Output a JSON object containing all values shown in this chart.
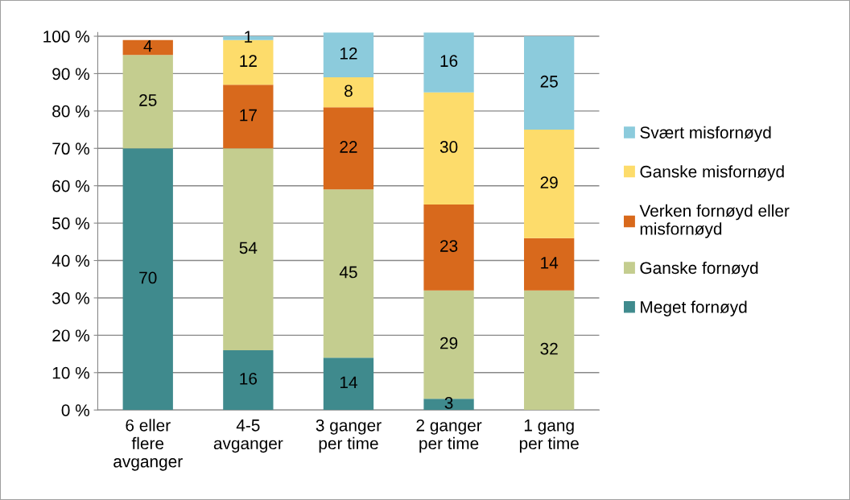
{
  "chart_data": {
    "type": "bar",
    "stacked": true,
    "categories": [
      "6 eller\nflere\navganger",
      "4-5\navganger",
      "3 ganger\nper time",
      "2 ganger\nper time",
      "1 gang\nper time"
    ],
    "series": [
      {
        "name": "Meget fornøyd",
        "color": "#3f8a8d",
        "values": [
          70,
          16,
          14,
          3,
          null
        ],
        "value_labels": [
          "70",
          "16",
          "14",
          "3",
          null
        ]
      },
      {
        "name": "Ganske fornøyd",
        "color": "#c4cd8f",
        "values": [
          25,
          54,
          45,
          29,
          32
        ],
        "value_labels": [
          "25",
          "54",
          "45",
          "29",
          "32"
        ]
      },
      {
        "name": "Verken fornøyd eller\nmisfornøyd",
        "color": "#d8691c",
        "values": [
          4,
          17,
          22,
          23,
          14
        ],
        "value_labels": [
          "4",
          "17",
          "22",
          "23",
          "14"
        ]
      },
      {
        "name": "Ganske misfornøyd",
        "color": "#fddc6b",
        "values": [
          null,
          12,
          8,
          30,
          29
        ],
        "value_labels": [
          null,
          "12",
          "8",
          "30",
          "29"
        ]
      },
      {
        "name": "Svært misfornøyd",
        "color": "#8ccbdc",
        "values": [
          null,
          1,
          12,
          16,
          25
        ],
        "value_labels": [
          null,
          "1",
          "12",
          "16",
          "25"
        ]
      }
    ],
    "ylim": [
      0,
      101
    ],
    "yticks": [
      {
        "value": 0,
        "label": "0 %"
      },
      {
        "value": 10,
        "label": "10 %"
      },
      {
        "value": 20,
        "label": "20 %"
      },
      {
        "value": 30,
        "label": "30 %"
      },
      {
        "value": 40,
        "label": "40 %"
      },
      {
        "value": 50,
        "label": "50 %"
      },
      {
        "value": 60,
        "label": "60 %"
      },
      {
        "value": 70,
        "label": "70 %"
      },
      {
        "value": 80,
        "label": "80 %"
      },
      {
        "value": 90,
        "label": "90 %"
      },
      {
        "value": 100,
        "label": "100 %"
      }
    ],
    "grid": "y",
    "legend": "right"
  }
}
